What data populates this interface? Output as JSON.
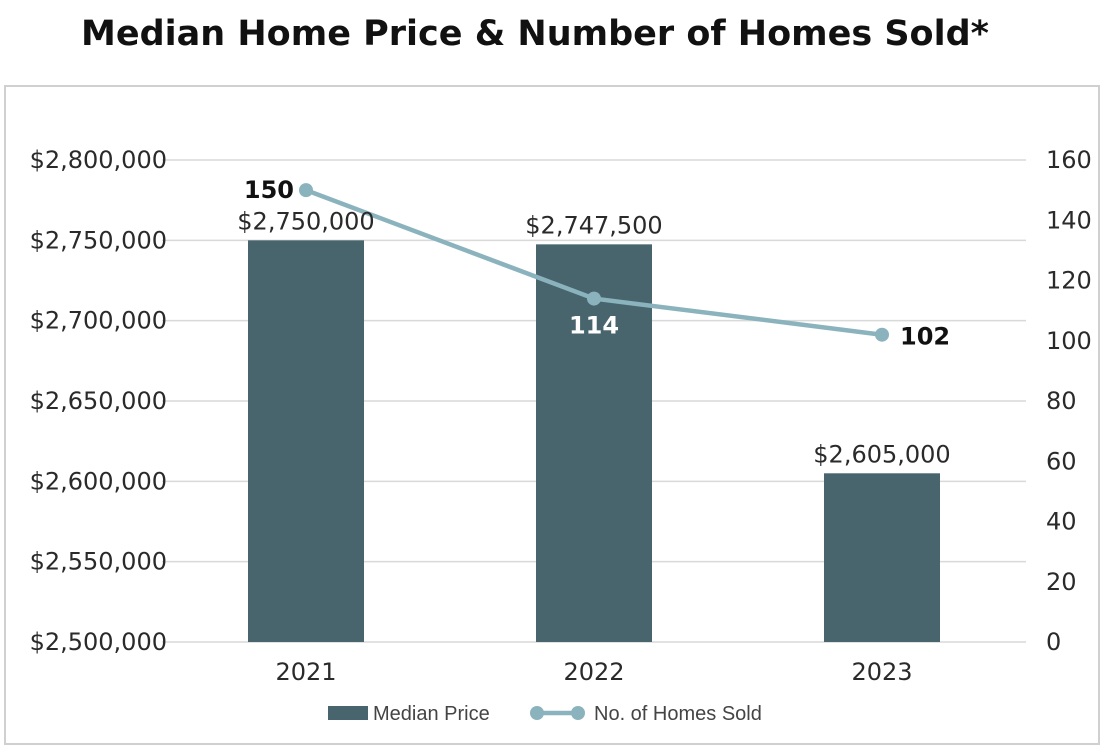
{
  "chart_data": {
    "type": "bar",
    "title": "Median Home Price & Number of Homes Sold*",
    "categories": [
      "2021",
      "2022",
      "2023"
    ],
    "series": [
      {
        "name": "Median Price",
        "type": "bar",
        "axis": "left",
        "values": [
          2750000,
          2747500,
          2605000
        ],
        "value_labels": [
          "$2,750,000",
          "$2,747,500",
          "$2,605,000"
        ],
        "color": "#48656d"
      },
      {
        "name": "No. of Homes Sold",
        "type": "line",
        "axis": "right",
        "values": [
          150,
          114,
          102
        ],
        "value_labels": [
          "150",
          "114",
          "102"
        ],
        "color": "#8bb3bd"
      }
    ],
    "y_left": {
      "min": 2500000,
      "max": 2800000,
      "ticks": [
        2500000,
        2550000,
        2600000,
        2650000,
        2700000,
        2750000,
        2800000
      ],
      "tick_labels": [
        "$2,500,000",
        "$2,550,000",
        "$2,600,000",
        "$2,650,000",
        "$2,700,000",
        "$2,750,000",
        "$2,800,000"
      ]
    },
    "y_right": {
      "min": 0,
      "max": 160,
      "ticks": [
        0,
        20,
        40,
        60,
        80,
        100,
        120,
        140,
        160
      ],
      "tick_labels": [
        "0",
        "20",
        "40",
        "60",
        "80",
        "100",
        "120",
        "140",
        "160"
      ]
    },
    "grid": true,
    "legend": {
      "position": "bottom-center",
      "entries": [
        "Median Price",
        "No. of Homes Sold"
      ]
    },
    "colors": {
      "bar": "#48656d",
      "line": "#8bb3bd",
      "grid": "#d9d9d9",
      "frame": "#d0d0d0",
      "label_dark": "#111111",
      "label_light": "#ffffff"
    }
  }
}
